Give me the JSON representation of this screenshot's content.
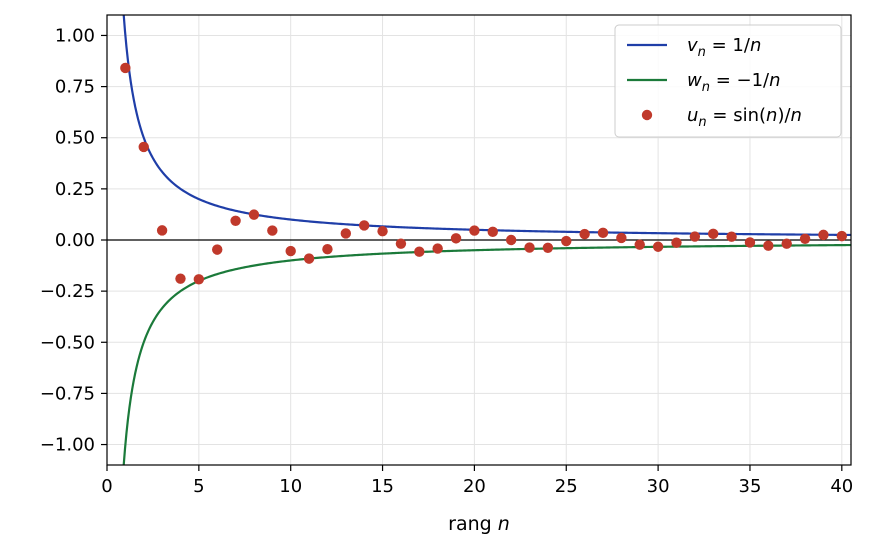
{
  "chart_data": {
    "type": "line",
    "xlabel": "rang n",
    "xlabel_parts": {
      "text": "rang ",
      "var": "n"
    },
    "xlim": [
      0,
      40.5
    ],
    "ylim": [
      -1.1,
      1.1
    ],
    "xticks": [
      0,
      5,
      10,
      15,
      20,
      25,
      30,
      35,
      40
    ],
    "xtick_labels": [
      "0",
      "5",
      "10",
      "15",
      "20",
      "25",
      "30",
      "35",
      "40"
    ],
    "yticks": [
      1.0,
      0.75,
      0.5,
      0.25,
      0.0,
      -0.25,
      -0.5,
      -0.75,
      -1.0
    ],
    "ytick_labels": [
      "1.00",
      "0.75",
      "0.50",
      "0.25",
      "0.00",
      "−0.25",
      "−0.50",
      "−0.75",
      "−1.00"
    ],
    "grid": true,
    "zero_line": true,
    "legend_position": "top-right",
    "series": [
      {
        "name": "v_n = 1/n",
        "kind": "line",
        "color": "#1f3ea8",
        "formula": "1/n",
        "x_range": [
          0.9,
          40.5
        ],
        "legend": {
          "var": "v",
          "sub": "n",
          "rest": " = 1/",
          "tail": "n"
        }
      },
      {
        "name": "w_n = −1/n",
        "kind": "line",
        "color": "#1b7a3a",
        "formula": "-1/n",
        "x_range": [
          0.9,
          40.5
        ],
        "legend": {
          "var": "w",
          "sub": "n",
          "rest": " = −1/",
          "tail": "n"
        }
      },
      {
        "name": "u_n = sin(n)/n",
        "kind": "scatter",
        "color": "#c0392b",
        "legend": {
          "var": "u",
          "sub": "n",
          "rest": " = sin(",
          "mid": "n",
          "rest2": ")/",
          "tail": "n"
        },
        "x": [
          1,
          2,
          3,
          4,
          5,
          6,
          7,
          8,
          9,
          10,
          11,
          12,
          13,
          14,
          15,
          16,
          17,
          18,
          19,
          20,
          21,
          22,
          23,
          24,
          25,
          26,
          27,
          28,
          29,
          30,
          31,
          32,
          33,
          34,
          35,
          36,
          37,
          38,
          39,
          40
        ],
        "y": [
          0.841,
          0.455,
          0.047,
          -0.189,
          -0.192,
          -0.047,
          0.094,
          0.124,
          0.046,
          -0.054,
          -0.091,
          -0.045,
          0.032,
          0.071,
          0.043,
          -0.018,
          -0.057,
          -0.042,
          0.008,
          0.046,
          0.04,
          -0.0,
          -0.037,
          -0.038,
          -0.005,
          0.029,
          0.035,
          0.01,
          -0.023,
          -0.033,
          -0.013,
          0.017,
          0.03,
          0.016,
          -0.012,
          -0.028,
          -0.018,
          0.006,
          0.025,
          0.019
        ]
      }
    ]
  }
}
